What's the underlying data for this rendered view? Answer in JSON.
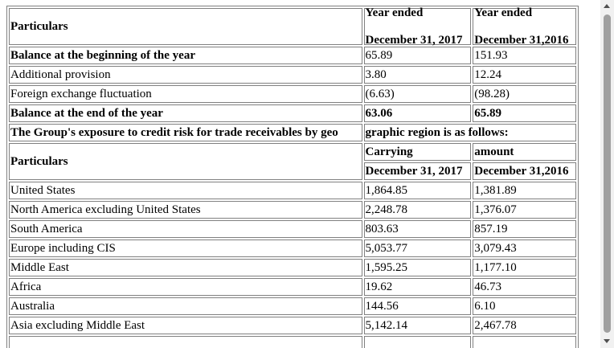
{
  "table1": {
    "header_particulars": "Particulars",
    "header_col2_line1": "Year ended",
    "header_col2_line2": "December 31, 2017",
    "header_col3_line1": "Year ended",
    "header_col3_line2": "December 31,2016",
    "rows": [
      {
        "label": "Balance at the beginning of the year",
        "v2017": "65.89",
        "v2016": "151.93",
        "bold": true
      },
      {
        "label": "Additional provision",
        "v2017": "3.80",
        "v2016": "12.24",
        "bold": false
      },
      {
        "label": "Foreign exchange fluctuation",
        "v2017": "(6.63)",
        "v2016": "(98.28)",
        "bold": false
      },
      {
        "label": "Balance at the end of the year",
        "v2017": "63.06",
        "v2016": "65.89",
        "bold": true
      }
    ]
  },
  "exposure_note": {
    "part1": "The Group's exposure to credit risk for trade receivables by geo",
    "part2": "graphic region is as follows:"
  },
  "table2": {
    "header_particulars": "Particulars",
    "header_col2_line1": "Carrying",
    "header_col3_line1": "amount",
    "header_col2_line2": "December 31, 2017",
    "header_col3_line2": "December 31,2016",
    "rows": [
      {
        "label": "United States",
        "v2017": "1,864.85",
        "v2016": "1,381.89"
      },
      {
        "label": "North America excluding United States",
        "v2017": "2,248.78",
        "v2016": "1,376.07"
      },
      {
        "label": "South America",
        "v2017": "803.63",
        "v2016": "857.19"
      },
      {
        "label": "Europe including CIS",
        "v2017": "5,053.77",
        "v2016": "3,079.43"
      },
      {
        "label": "Middle East",
        "v2017": "1,595.25",
        "v2016": "1,177.10"
      },
      {
        "label": "Africa",
        "v2017": "19.62",
        "v2016": "46.73"
      },
      {
        "label": "Australia",
        "v2017": "144.56",
        "v2016": "6.10"
      },
      {
        "label": "Asia excluding Middle East",
        "v2017": "5,142.14",
        "v2016": "2,467.78"
      }
    ]
  }
}
